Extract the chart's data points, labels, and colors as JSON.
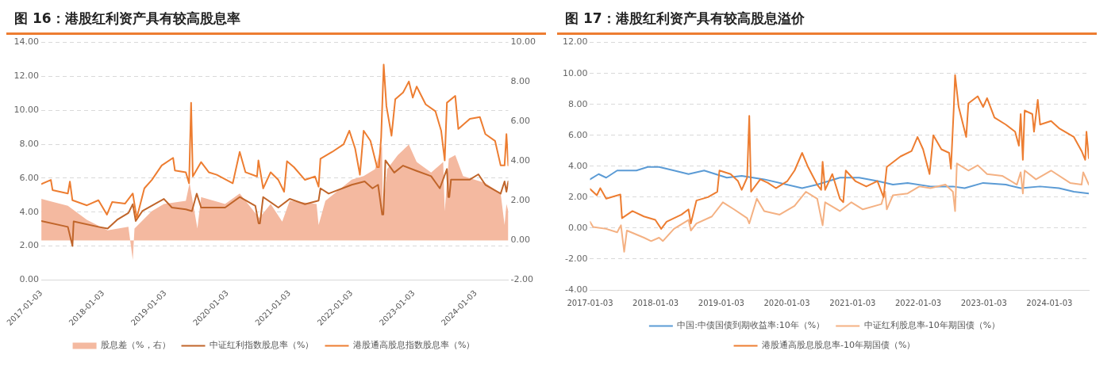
{
  "chart_data": [
    {
      "type": "line",
      "title": "图 16：港股红利资产具有较高股息率",
      "grid": "y",
      "legend": "bottom",
      "xlim": [
        "2017-01-03",
        "2024-07-12"
      ],
      "xticks": [
        {
          "value": "2017-01-03",
          "label": "2017-01-03"
        },
        {
          "value": "2018-01-03",
          "label": "2018-01-03"
        },
        {
          "value": "2019-01-03",
          "label": "2019-01-03"
        },
        {
          "value": "2020-01-03",
          "label": "2020-01-03"
        },
        {
          "value": "2021-01-03",
          "label": "2021-01-03"
        },
        {
          "value": "2022-01-03",
          "label": "2022-01-03"
        },
        {
          "value": "2023-01-03",
          "label": "2023-01-03"
        },
        {
          "value": "2024-01-03",
          "label": "2024-01-03"
        }
      ],
      "ylim": [
        0,
        14
      ],
      "yticks": [
        {
          "value": 0,
          "label": "0.00"
        },
        {
          "value": 2,
          "label": "2.00"
        },
        {
          "value": 4,
          "label": "4.00"
        },
        {
          "value": 6,
          "label": "6.00"
        },
        {
          "value": 8,
          "label": "8.00"
        },
        {
          "value": 10,
          "label": "10.00"
        },
        {
          "value": 12,
          "label": "12.00"
        },
        {
          "value": 14,
          "label": "14.00"
        }
      ],
      "y2lim": [
        -2,
        10
      ],
      "y2ticks": [
        {
          "value": -2,
          "label": "-2.00"
        },
        {
          "value": 0,
          "label": "0.00"
        },
        {
          "value": 2,
          "label": "2.00"
        },
        {
          "value": 4,
          "label": "4.00"
        },
        {
          "value": 6,
          "label": "6.00"
        },
        {
          "value": 8,
          "label": "8.00"
        },
        {
          "value": 10,
          "label": "10.00"
        }
      ],
      "series": [
        {
          "name": "股息差（%，右）",
          "type": "area",
          "axis": "y2",
          "color": "#f4b9a0",
          "x": [
            "2017-01-03",
            "2017-02-15",
            "2017-06-08",
            "2017-09-28",
            "2018-01-28",
            "2018-05-30",
            "2018-06-25",
            "2018-07-05",
            "2018-10-15",
            "2018-12-25",
            "2019-05-03",
            "2019-05-25",
            "2019-07-10",
            "2019-08-01",
            "2019-12-20",
            "2020-03-15",
            "2020-07-08",
            "2020-09-13",
            "2020-11-20",
            "2021-01-03",
            "2021-06-10",
            "2021-06-22",
            "2021-08-01",
            "2022-01-03",
            "2022-03-14",
            "2022-05-20",
            "2022-06-30",
            "2022-07-05",
            "2022-07-30",
            "2022-10-01",
            "2022-12-05",
            "2023-01-20",
            "2023-04-15",
            "2023-06-25",
            "2023-07-04",
            "2023-07-28",
            "2023-09-04",
            "2023-10-20",
            "2024-02-28",
            "2024-05-28",
            "2024-06-20",
            "2024-07-01",
            "2024-07-12"
          ],
          "values": [
            2.1,
            2.0,
            1.75,
            1.04,
            0.51,
            0.69,
            -0.99,
            0.6,
            1.48,
            1.84,
            2.0,
            2.9,
            0.6,
            2.19,
            1.84,
            2.37,
            1.13,
            1.84,
            0.95,
            2.0,
            1.84,
            0.78,
            2.0,
            3.07,
            3.25,
            3.6,
            4.84,
            1.48,
            3.6,
            4.31,
            4.84,
            3.96,
            3.43,
            3.96,
            1.48,
            4.13,
            4.31,
            3.25,
            2.9,
            2.37,
            0.78,
            1.84,
            1.48
          ]
        },
        {
          "name": "中证红利指数股息率（%）",
          "color": "#c0652a",
          "x": [
            "2017-01-03",
            "2017-06-08",
            "2017-07-05",
            "2017-07-12",
            "2017-12-05",
            "2018-01-28",
            "2018-03-25",
            "2018-05-30",
            "2018-06-25",
            "2018-07-12",
            "2018-08-20",
            "2018-12-25",
            "2019-02-10",
            "2019-05-03",
            "2019-06-08",
            "2019-07-06",
            "2019-08-01",
            "2019-12-20",
            "2020-03-15",
            "2020-06-15",
            "2020-07-04",
            "2020-07-12",
            "2020-07-31",
            "2020-10-28",
            "2021-01-03",
            "2021-04-03",
            "2021-06-22",
            "2021-07-03",
            "2021-08-20",
            "2022-01-03",
            "2022-03-20",
            "2022-05-05",
            "2022-06-07",
            "2022-07-01",
            "2022-07-08",
            "2022-07-20",
            "2022-09-10",
            "2022-11-01",
            "2023-01-20",
            "2023-04-15",
            "2023-06-05",
            "2023-07-17",
            "2023-07-25",
            "2023-07-31",
            "2023-08-10",
            "2023-11-29",
            "2024-01-18",
            "2024-02-28",
            "2024-05-28",
            "2024-06-20",
            "2024-07-01",
            "2024-07-12"
          ],
          "values": [
            3.48,
            3.13,
            2.0,
            3.45,
            3.13,
            3.03,
            3.55,
            3.95,
            4.47,
            3.48,
            4.06,
            4.78,
            4.27,
            4.16,
            4.06,
            5.09,
            4.27,
            4.27,
            4.89,
            4.37,
            3.34,
            3.34,
            4.89,
            4.27,
            4.78,
            4.47,
            4.68,
            5.4,
            5.09,
            5.61,
            5.81,
            5.4,
            5.61,
            3.86,
            3.86,
            7.05,
            6.33,
            6.74,
            6.43,
            6.12,
            5.4,
            6.54,
            4.89,
            4.89,
            5.92,
            5.92,
            6.23,
            5.61,
            5.09,
            5.81,
            5.2,
            5.81
          ]
        },
        {
          "name": "港股通高股息指数股息率（%）",
          "color": "#ed7d31",
          "x": [
            "2017-01-03",
            "2017-02-28",
            "2017-03-10",
            "2017-06-08",
            "2017-06-20",
            "2017-07-05",
            "2017-09-28",
            "2017-12-05",
            "2018-01-24",
            "2018-02-24",
            "2018-05-10",
            "2018-06-25",
            "2018-07-18",
            "2018-09-01",
            "2018-10-15",
            "2018-12-12",
            "2019-02-17",
            "2019-02-28",
            "2019-05-03",
            "2019-05-22",
            "2019-06-03",
            "2019-06-13",
            "2019-08-01",
            "2019-09-15",
            "2019-11-01",
            "2020-02-03",
            "2020-03-15",
            "2020-04-18",
            "2020-06-25",
            "2020-07-03",
            "2020-07-31",
            "2020-09-13",
            "2020-10-28",
            "2020-12-01",
            "2020-12-18",
            "2021-01-28",
            "2021-04-03",
            "2021-06-01",
            "2021-06-22",
            "2021-07-03",
            "2021-09-10",
            "2021-11-16",
            "2021-12-20",
            "2022-01-23",
            "2022-02-20",
            "2022-03-14",
            "2022-04-23",
            "2022-06-01",
            "2022-06-12",
            "2022-06-25",
            "2022-07-10",
            "2022-07-26",
            "2022-08-25",
            "2022-09-16",
            "2022-11-01",
            "2022-12-05",
            "2022-12-28",
            "2023-01-20",
            "2023-03-14",
            "2023-05-10",
            "2023-06-13",
            "2023-07-04",
            "2023-07-17",
            "2023-09-04",
            "2023-09-22",
            "2023-11-29",
            "2024-01-27",
            "2024-02-28",
            "2024-04-25",
            "2024-05-28",
            "2024-06-20",
            "2024-07-01",
            "2024-07-12"
          ],
          "values": [
            5.65,
            5.9,
            5.3,
            5.1,
            5.8,
            4.7,
            4.4,
            4.7,
            3.85,
            4.6,
            4.5,
            5.1,
            3.65,
            5.4,
            5.9,
            6.75,
            7.2,
            6.45,
            6.35,
            5.7,
            10.45,
            6.1,
            6.95,
            6.35,
            6.2,
            5.7,
            7.55,
            6.35,
            6.1,
            7.05,
            5.4,
            6.35,
            5.9,
            5.2,
            7.0,
            6.65,
            5.9,
            6.1,
            5.5,
            7.15,
            7.55,
            8.0,
            8.8,
            7.75,
            6.2,
            8.8,
            8.2,
            6.65,
            6.65,
            8.4,
            12.7,
            10.25,
            8.5,
            10.65,
            11.05,
            11.7,
            10.75,
            11.4,
            10.35,
            9.95,
            8.8,
            7.05,
            10.45,
            10.85,
            8.9,
            9.5,
            9.6,
            8.6,
            8.2,
            6.75,
            6.75,
            8.6,
            6.75
          ]
        }
      ]
    },
    {
      "type": "line",
      "title": "图 17：港股红利资产具有较高股息溢价",
      "grid": "y",
      "legend": "bottom",
      "xlim": [
        "2017-01-03",
        "2024-08-09"
      ],
      "xticks": [
        {
          "value": "2017-01-03",
          "label": "2017-01-03"
        },
        {
          "value": "2018-01-03",
          "label": "2018-01-03"
        },
        {
          "value": "2019-01-03",
          "label": "2019-01-03"
        },
        {
          "value": "2020-01-03",
          "label": "2020-01-03"
        },
        {
          "value": "2021-01-03",
          "label": "2021-01-03"
        },
        {
          "value": "2022-01-03",
          "label": "2022-01-03"
        },
        {
          "value": "2023-01-03",
          "label": "2023-01-03"
        },
        {
          "value": "2024-01-03",
          "label": "2024-01-03"
        }
      ],
      "ylim": [
        -4,
        12
      ],
      "yticks": [
        {
          "value": -4,
          "label": "-4.00"
        },
        {
          "value": -2,
          "label": "-2.00"
        },
        {
          "value": 0,
          "label": "0.00"
        },
        {
          "value": 2,
          "label": "2.00"
        },
        {
          "value": 4,
          "label": "4.00"
        },
        {
          "value": 6,
          "label": "6.00"
        },
        {
          "value": 8,
          "label": "8.00"
        },
        {
          "value": 10,
          "label": "10.00"
        },
        {
          "value": 12,
          "label": "12.00"
        }
      ],
      "series": [
        {
          "name": "中国:中债国债到期收益率:10年（%）",
          "color": "#5b9bd5",
          "x": [
            "2017-01-03",
            "2017-02-20",
            "2017-04-03",
            "2017-06-03",
            "2017-09-18",
            "2017-11-20",
            "2018-01-22",
            "2018-04-15",
            "2018-07-05",
            "2018-09-30",
            "2019-02-03",
            "2019-04-27",
            "2019-08-30",
            "2020-03-28",
            "2020-06-20",
            "2020-10-24",
            "2021-02-08",
            "2021-05-21",
            "2021-08-15",
            "2021-11-05",
            "2022-03-12",
            "2022-07-15",
            "2022-09-18",
            "2022-12-30",
            "2023-05-05",
            "2023-07-27",
            "2023-11-12",
            "2024-02-25",
            "2024-05-18",
            "2024-08-09"
          ],
          "values": [
            3.15,
            3.49,
            3.26,
            3.72,
            3.72,
            3.95,
            3.95,
            3.72,
            3.49,
            3.72,
            3.26,
            3.38,
            3.15,
            2.58,
            2.81,
            3.26,
            3.26,
            3.04,
            2.81,
            2.92,
            2.69,
            2.69,
            2.58,
            2.92,
            2.81,
            2.58,
            2.69,
            2.58,
            2.35,
            2.24
          ]
        },
        {
          "name": "中证红利股息率-10年期国债（%）",
          "color": "#f4b183",
          "x": [
            "2017-01-03",
            "2017-01-20",
            "2017-04-03",
            "2017-06-03",
            "2017-06-24",
            "2017-07-12",
            "2017-07-27",
            "2017-10-30",
            "2017-12-09",
            "2018-01-22",
            "2018-02-12",
            "2018-04-15",
            "2018-07-05",
            "2018-07-18",
            "2018-08-18",
            "2018-11-12",
            "2019-01-12",
            "2019-03-15",
            "2019-05-27",
            "2019-06-08",
            "2019-07-20",
            "2019-08-30",
            "2019-11-24",
            "2020-02-15",
            "2020-04-18",
            "2020-06-20",
            "2020-07-20",
            "2020-08-03",
            "2020-10-24",
            "2020-12-27",
            "2021-03-01",
            "2021-06-12",
            "2021-07-03",
            "2021-07-12",
            "2021-08-15",
            "2021-11-05",
            "2022-01-09",
            "2022-03-12",
            "2022-06-03",
            "2022-07-15",
            "2022-07-27",
            "2022-08-06",
            "2022-10-09",
            "2022-11-30",
            "2023-01-21",
            "2023-04-15",
            "2023-07-06",
            "2023-07-27",
            "2023-08-08",
            "2023-08-18",
            "2023-10-20",
            "2024-01-12",
            "2024-04-27",
            "2024-06-30",
            "2024-07-09",
            "2024-08-09"
          ],
          "values": [
            0.41,
            0.07,
            -0.05,
            -0.27,
            0.18,
            -1.53,
            -0.16,
            -0.62,
            -0.84,
            -0.62,
            -0.84,
            -0.05,
            0.53,
            -0.16,
            0.3,
            0.75,
            1.67,
            1.21,
            0.64,
            0.3,
            1.9,
            1.1,
            0.87,
            1.44,
            2.35,
            1.9,
            0.18,
            1.67,
            1.1,
            1.67,
            1.21,
            1.55,
            2.35,
            1.21,
            2.12,
            2.24,
            2.69,
            2.58,
            2.81,
            2.35,
            1.1,
            4.18,
            3.72,
            4.06,
            3.49,
            3.38,
            2.81,
            3.61,
            2.24,
            3.72,
            3.15,
            3.72,
            2.92,
            2.81,
            3.61,
            2.81
          ]
        },
        {
          "name": "港股通高股息股息率-10年期国债（%）",
          "color": "#ed7d31",
          "x": [
            "2017-01-03",
            "2017-02-10",
            "2017-03-01",
            "2017-04-03",
            "2017-06-21",
            "2017-06-30",
            "2017-08-27",
            "2017-10-30",
            "2018-01-01",
            "2018-02-03",
            "2018-03-05",
            "2018-05-27",
            "2018-07-05",
            "2018-07-18",
            "2018-08-18",
            "2018-10-21",
            "2018-12-12",
            "2018-12-24",
            "2019-02-24",
            "2019-04-06",
            "2019-04-27",
            "2019-05-27",
            "2019-06-08",
            "2019-06-18",
            "2019-08-08",
            "2019-09-20",
            "2019-11-03",
            "2020-01-06",
            "2020-02-15",
            "2020-03-28",
            "2020-04-30",
            "2020-06-20",
            "2020-07-12",
            "2020-07-20",
            "2020-08-03",
            "2020-09-12",
            "2020-10-24",
            "2020-11-12",
            "2020-11-26",
            "2021-01-18",
            "2021-03-20",
            "2021-05-21",
            "2021-06-24",
            "2021-07-12",
            "2021-09-26",
            "2021-11-27",
            "2021-12-30",
            "2022-01-30",
            "2022-03-07",
            "2022-03-28",
            "2022-05-12",
            "2022-06-24",
            "2022-07-04",
            "2022-07-20",
            "2022-07-27",
            "2022-08-16",
            "2022-09-27",
            "2022-10-09",
            "2022-11-30",
            "2022-12-30",
            "2023-01-21",
            "2023-03-03",
            "2023-05-05",
            "2023-06-26",
            "2023-07-17",
            "2023-07-27",
            "2023-08-08",
            "2023-08-18",
            "2023-09-30",
            "2023-10-09",
            "2023-10-30",
            "2023-11-12",
            "2024-01-12",
            "2024-02-25",
            "2024-05-18",
            "2024-06-30",
            "2024-07-20",
            "2024-07-27",
            "2024-08-09"
          ],
          "values": [
            2.53,
            2.12,
            2.58,
            1.9,
            2.17,
            0.64,
            1.1,
            0.75,
            0.53,
            -0.05,
            0.41,
            0.87,
            1.21,
            0.3,
            1.78,
            2.0,
            2.35,
            3.72,
            3.49,
            3.04,
            2.47,
            3.26,
            7.26,
            2.35,
            3.15,
            2.92,
            2.58,
            3.04,
            3.72,
            4.86,
            3.95,
            2.81,
            2.47,
            4.29,
            2.47,
            3.49,
            1.9,
            1.67,
            3.72,
            3.04,
            2.69,
            3.04,
            2.0,
            3.95,
            4.63,
            4.98,
            5.89,
            5.09,
            3.49,
            6.0,
            5.09,
            4.86,
            3.84,
            7.83,
            9.89,
            7.83,
            5.89,
            8.06,
            8.52,
            7.83,
            8.4,
            7.15,
            6.69,
            6.23,
            5.32,
            7.37,
            4.41,
            7.6,
            7.37,
            6.23,
            8.29,
            6.69,
            6.92,
            6.46,
            5.89,
            4.98,
            4.41,
            6.23,
            4.52
          ]
        }
      ]
    }
  ]
}
